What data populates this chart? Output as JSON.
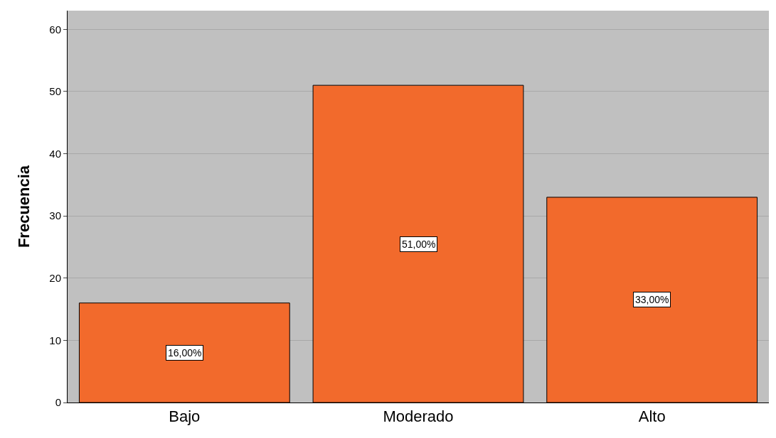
{
  "chart_data": {
    "type": "bar",
    "ylabel": "Frecuencia",
    "categories": [
      "Bajo",
      "Moderado",
      "Alto"
    ],
    "values": [
      16,
      51,
      33
    ],
    "value_labels": [
      "16,00%",
      "51,00%",
      "33,00%"
    ],
    "color": "#f26a2c",
    "ylim": [
      0,
      63
    ],
    "yticks": [
      0,
      10,
      20,
      30,
      40,
      50,
      60
    ],
    "grid": "y",
    "legend": false
  }
}
